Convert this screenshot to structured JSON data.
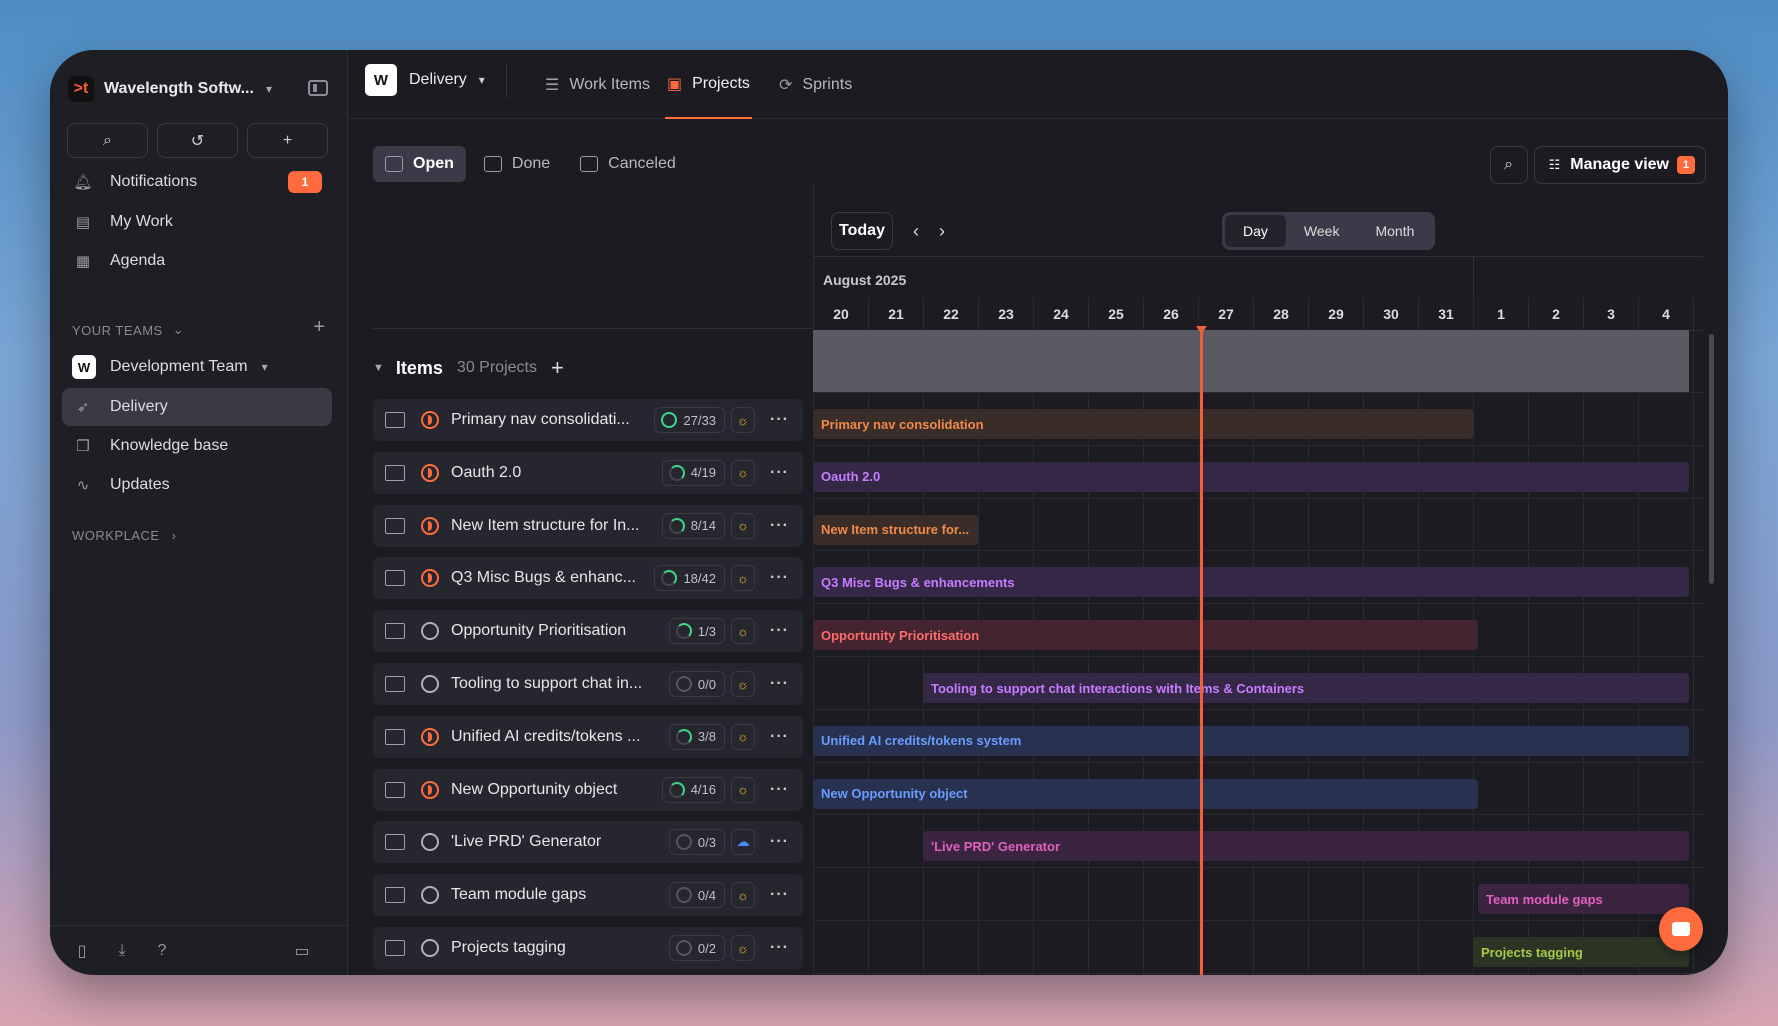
{
  "workspace": {
    "name": "Wavelength Softw...",
    "logo": ">t"
  },
  "sidebar": {
    "nav": [
      {
        "label": "Notifications",
        "badge": "1"
      },
      {
        "label": "My Work"
      },
      {
        "label": "Agenda"
      }
    ],
    "your_teams": "YOUR TEAMS",
    "team": {
      "name": "Development Team",
      "logo": "W"
    },
    "team_items": [
      {
        "label": "Delivery"
      },
      {
        "label": "Knowledge base"
      },
      {
        "label": "Updates"
      }
    ],
    "workplace": "WORKPLACE"
  },
  "header": {
    "project": "Delivery",
    "project_logo": "W",
    "tabs": [
      {
        "label": "Work Items"
      },
      {
        "label": "Projects"
      },
      {
        "label": "Sprints"
      }
    ]
  },
  "filters": [
    "Open",
    "Done",
    "Canceled"
  ],
  "toolbar": {
    "manage_view": "Manage view",
    "manage_badge": "1"
  },
  "list": {
    "title": "Items",
    "count": "30 Projects"
  },
  "items": [
    {
      "name": "Primary nav consolidati...",
      "progress": "27/33",
      "bar": "Primary nav consolidation"
    },
    {
      "name": "Oauth 2.0",
      "progress": "4/19",
      "bar": "Oauth 2.0"
    },
    {
      "name": "New Item structure for In...",
      "progress": "8/14",
      "bar": "New Item structure for..."
    },
    {
      "name": "Q3 Misc Bugs & enhanc...",
      "progress": "18/42",
      "bar": "Q3 Misc Bugs & enhancements"
    },
    {
      "name": "Opportunity Prioritisation",
      "progress": "1/3",
      "bar": "Opportunity Prioritisation"
    },
    {
      "name": "Tooling to support chat in...",
      "progress": "0/0",
      "bar": "Tooling to support chat interactions with Items & Containers"
    },
    {
      "name": "Unified AI credits/tokens ...",
      "progress": "3/8",
      "bar": "Unified AI credits/tokens system"
    },
    {
      "name": "New Opportunity object",
      "progress": "4/16",
      "bar": "New Opportunity object"
    },
    {
      "name": "'Live PRD' Generator",
      "progress": "0/3",
      "bar": "'Live PRD' Generator"
    },
    {
      "name": "Team module gaps",
      "progress": "0/4",
      "bar": "Team module gaps"
    },
    {
      "name": "Projects tagging",
      "progress": "0/2",
      "bar": "Projects tagging"
    }
  ],
  "timeline": {
    "today": "Today",
    "scales": [
      "Day",
      "Week",
      "Month"
    ],
    "month": "August 2025",
    "days": [
      "20",
      "21",
      "22",
      "23",
      "24",
      "25",
      "26",
      "27",
      "28",
      "29",
      "30",
      "31",
      "1",
      "2",
      "3",
      "4"
    ]
  }
}
